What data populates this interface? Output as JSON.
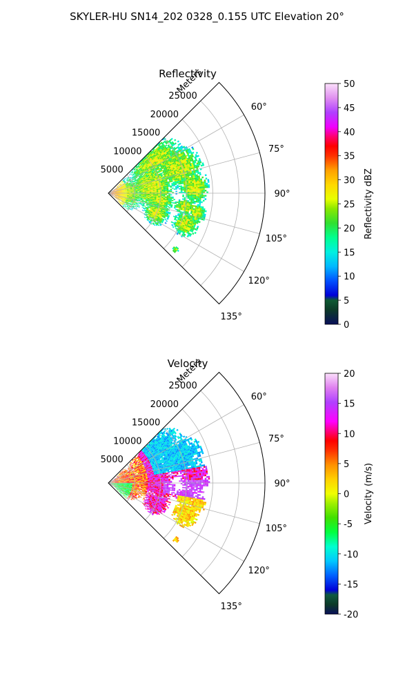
{
  "figure": {
    "suptitle": "SKYLER-HU  SN14_202  0328_0.155 UTC Elevation 20°"
  },
  "chart_data": [
    {
      "type": "heatmap",
      "projection": "polar-sector",
      "title": "Reflectivity",
      "radial_label": "Meters",
      "radial_ticks": [
        "5000",
        "10000",
        "15000",
        "20000",
        "25000"
      ],
      "rlim": [
        0,
        30000
      ],
      "angle_ticks": [
        "60°",
        "75°",
        "90°",
        "105°",
        "120°",
        "135°"
      ],
      "theta_range_deg": [
        45,
        135
      ],
      "grid": true,
      "colorbar": {
        "label": "Reflectivity dBZ",
        "range": [
          0,
          50
        ],
        "ticks": [
          "0",
          "5",
          "10",
          "15",
          "20",
          "25",
          "30",
          "35",
          "40",
          "45",
          "50"
        ]
      },
      "field": "reflectivity"
    },
    {
      "type": "heatmap",
      "projection": "polar-sector",
      "title": "Velocity",
      "radial_label": "Meters",
      "radial_ticks": [
        "5000",
        "10000",
        "15000",
        "20000",
        "25000"
      ],
      "rlim": [
        0,
        30000
      ],
      "angle_ticks": [
        "60°",
        "75°",
        "90°",
        "105°",
        "120°",
        "135°"
      ],
      "theta_range_deg": [
        45,
        135
      ],
      "grid": true,
      "colorbar": {
        "label": "Velocity (m/s)",
        "range": [
          -20,
          20
        ],
        "ticks": [
          "-20",
          "-15",
          "-10",
          "-5",
          "0",
          "5",
          "10",
          "15",
          "20"
        ]
      },
      "field": "velocity"
    }
  ]
}
